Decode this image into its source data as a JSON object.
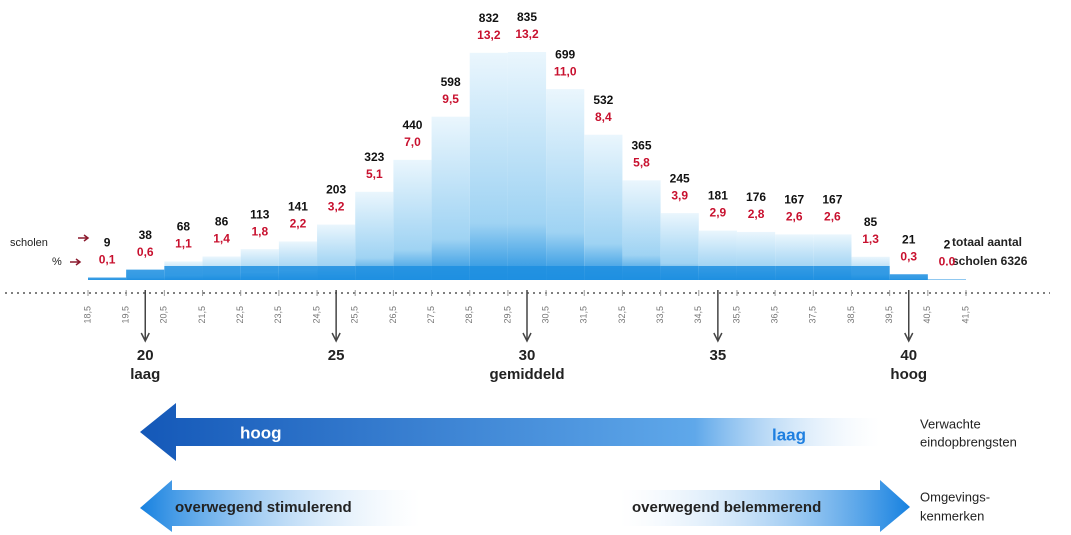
{
  "chart_data": {
    "type": "histogram",
    "bins": [
      18.5,
      19.5,
      20.5,
      21.5,
      22.5,
      23.5,
      24.5,
      25.5,
      26.5,
      27.5,
      28.5,
      29.5,
      30.5,
      31.5,
      32.5,
      33.5,
      34.5,
      35.5,
      36.5,
      37.5,
      38.5,
      39.5,
      40.5,
      41.5
    ],
    "xlim": [
      18.5,
      41.5
    ],
    "xticks": [
      {
        "value": 18.5,
        "label": "18,5"
      },
      {
        "value": 19.5,
        "label": "19,5"
      },
      {
        "value": 20.5,
        "label": "20,5"
      },
      {
        "value": 21.5,
        "label": "21,5"
      },
      {
        "value": 22.5,
        "label": "22,5"
      },
      {
        "value": 23.5,
        "label": "23,5"
      },
      {
        "value": 24.5,
        "label": "24,5"
      },
      {
        "value": 25.5,
        "label": "25,5"
      },
      {
        "value": 26.5,
        "label": "26,5"
      },
      {
        "value": 27.5,
        "label": "27,5"
      },
      {
        "value": 28.5,
        "label": "28,5"
      },
      {
        "value": 29.5,
        "label": "29,5"
      },
      {
        "value": 30.5,
        "label": "30,5"
      },
      {
        "value": 31.5,
        "label": "31,5"
      },
      {
        "value": 32.5,
        "label": "32,5"
      },
      {
        "value": 33.5,
        "label": "33,5"
      },
      {
        "value": 34.5,
        "label": "34,5"
      },
      {
        "value": 35.5,
        "label": "35,5"
      },
      {
        "value": 36.5,
        "label": "36,5"
      },
      {
        "value": 37.5,
        "label": "37,5"
      },
      {
        "value": 38.5,
        "label": "38,5"
      },
      {
        "value": 39.5,
        "label": "39,5"
      },
      {
        "value": 40.5,
        "label": "40,5"
      },
      {
        "value": 41.5,
        "label": "41,5"
      }
    ],
    "series": [
      {
        "name": "scholen",
        "color": "#1e8fe0",
        "values": [
          9,
          38,
          68,
          86,
          113,
          141,
          203,
          323,
          440,
          598,
          832,
          835,
          699,
          532,
          365,
          245,
          181,
          176,
          167,
          167,
          85,
          21,
          2
        ]
      },
      {
        "name": "%",
        "color": "#c8102e",
        "values": [
          0.1,
          0.6,
          1.1,
          1.4,
          1.8,
          2.2,
          3.2,
          5.1,
          7.0,
          9.5,
          13.2,
          13.2,
          11.0,
          8.4,
          5.8,
          3.9,
          2.9,
          2.8,
          2.6,
          2.6,
          1.3,
          0.3,
          0.0
        ],
        "value_labels": [
          "0,1",
          "0,6",
          "1,1",
          "1,4",
          "1,8",
          "2,2",
          "3,2",
          "5,1",
          "7,0",
          "9,5",
          "13,2",
          "13,2",
          "11,0",
          "8,4",
          "5,8",
          "3,9",
          "2,9",
          "2,8",
          "2,6",
          "2,6",
          "1,3",
          "0,3",
          "0.0"
        ]
      }
    ],
    "total_note": [
      "totaal aantal",
      "scholen 6326"
    ],
    "markers": [
      {
        "x": 20,
        "note": "laag"
      },
      {
        "x": 25
      },
      {
        "x": 30,
        "note": "gemiddeld"
      },
      {
        "x": 35
      },
      {
        "x": 40,
        "note": "hoog"
      }
    ],
    "bands": [
      {
        "left": "hoog",
        "right": "laag",
        "label": [
          "Verwachte",
          "eindopbrengsten"
        ]
      },
      {
        "left": "overwegend stimulerend",
        "right": "overwegend belemmerend",
        "label": [
          "Omgevings-",
          "kenmerken"
        ]
      }
    ]
  }
}
